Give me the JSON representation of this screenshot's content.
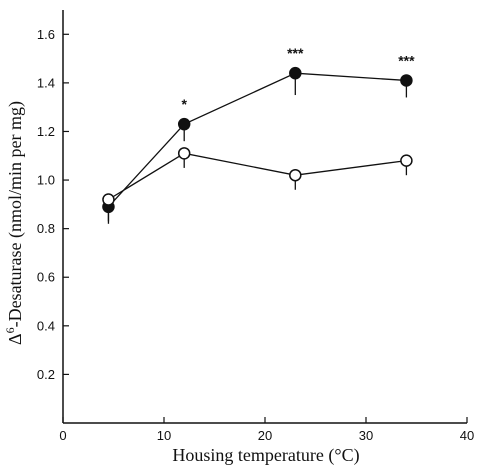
{
  "chart_data": {
    "type": "line",
    "title": "",
    "xlabel": "Housing temperature (°C)",
    "ylabel_prefix": "Δ",
    "ylabel_superscript": "6",
    "ylabel_rest": "-Desaturase (nmol/min per mg)",
    "xlim": [
      0,
      40
    ],
    "ylim": [
      0,
      1.7
    ],
    "xticks": [
      "0",
      "10",
      "20",
      "30",
      "40"
    ],
    "yticks": [
      "0.2",
      "0.4",
      "0.6",
      "0.8",
      "1.0",
      "1.2",
      "1.4",
      "1.6"
    ],
    "grid": false,
    "legend": "none",
    "series": [
      {
        "marker": "filled-circle",
        "x": [
          4.5,
          12,
          23,
          34
        ],
        "y": [
          0.89,
          1.23,
          1.44,
          1.41
        ],
        "error": [
          0.06,
          0.07,
          0.09,
          0.07
        ],
        "significance": [
          "",
          "*",
          "***",
          "***"
        ]
      },
      {
        "marker": "open-circle",
        "x": [
          4.5,
          12,
          23,
          34
        ],
        "y": [
          0.92,
          1.11,
          1.02,
          1.08
        ],
        "error": [
          0.1,
          0.06,
          0.06,
          0.06
        ],
        "significance": [
          "",
          "",
          "",
          ""
        ]
      }
    ]
  }
}
